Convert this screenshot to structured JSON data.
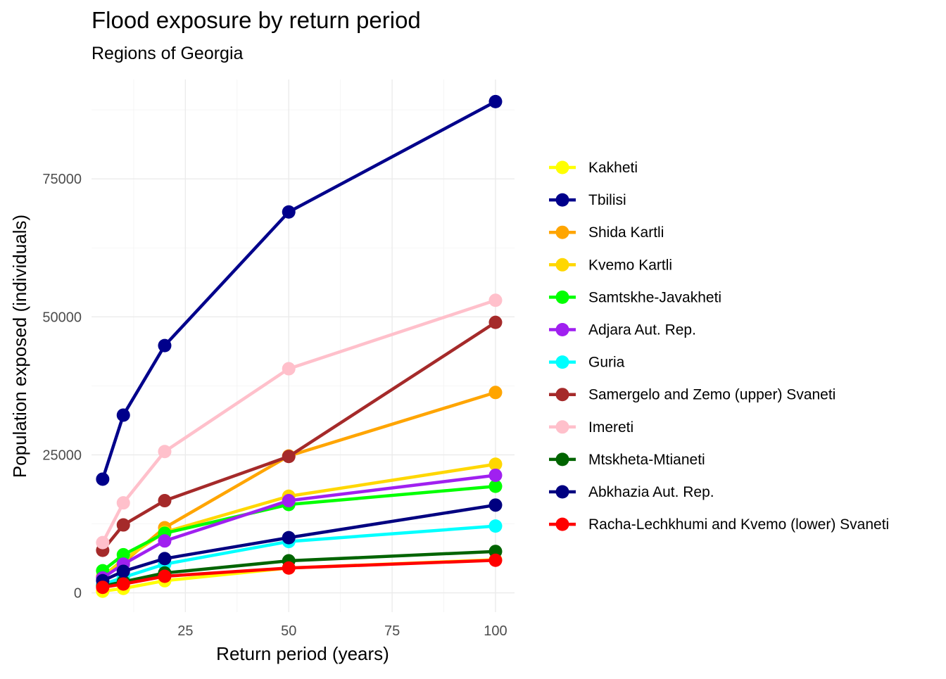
{
  "chart_data": {
    "type": "line",
    "title": "Flood exposure by return period",
    "subtitle": "Regions of Georgia",
    "xlabel": "Return period (years)",
    "ylabel": "Population exposed (individuals)",
    "x": [
      5,
      10,
      20,
      50,
      100
    ],
    "xlim": [
      2.3,
      104.6
    ],
    "ylim": [
      -3500,
      93000
    ],
    "x_ticks": [
      25,
      50,
      75,
      100
    ],
    "x_tick_labels": [
      "25",
      "50",
      "75",
      "100"
    ],
    "y_ticks": [
      0,
      25000,
      50000,
      75000
    ],
    "y_tick_labels": [
      "0",
      "25000",
      "50000",
      "75000"
    ],
    "grid": true,
    "legend_position": "right",
    "series": [
      {
        "name": "Kakheti",
        "color": "#FFFF00",
        "values": [
          300,
          800,
          2200,
          4500,
          6000
        ]
      },
      {
        "name": "Tbilisi",
        "color": "#00008B",
        "values": [
          20600,
          32200,
          44800,
          69000,
          89000
        ]
      },
      {
        "name": "Shida Kartli",
        "color": "#FFA500",
        "values": [
          2800,
          5500,
          11800,
          24800,
          36300
        ]
      },
      {
        "name": "Kvemo Kartli",
        "color": "#FFD700",
        "values": [
          3000,
          6000,
          11000,
          17500,
          23300
        ]
      },
      {
        "name": "Samtskhe-Javakheti",
        "color": "#00FF00",
        "values": [
          4000,
          6900,
          10800,
          16000,
          19300
        ]
      },
      {
        "name": "Adjara Aut. Rep.",
        "color": "#A020F0",
        "values": [
          2700,
          5200,
          9400,
          16700,
          21300
        ]
      },
      {
        "name": "Guria",
        "color": "#00FFFF",
        "values": [
          1500,
          2800,
          5200,
          9300,
          12100
        ]
      },
      {
        "name": "Samergelo and Zemo (upper) Svaneti",
        "color": "#A52A2A",
        "values": [
          7700,
          12300,
          16700,
          24700,
          49000
        ]
      },
      {
        "name": "Imereti",
        "color": "#FFC0CB",
        "values": [
          9100,
          16300,
          25600,
          40600,
          53000
        ]
      },
      {
        "name": "Mtskheta-Mtianeti",
        "color": "#006400",
        "values": [
          1200,
          2000,
          3600,
          5800,
          7500
        ]
      },
      {
        "name": "Abkhazia Aut. Rep.",
        "color": "#000080",
        "values": [
          2200,
          3900,
          6200,
          10000,
          15900
        ]
      },
      {
        "name": "Racha-Lechkhumi and Kvemo (lower) Svaneti",
        "color": "#FF0000",
        "values": [
          1000,
          1600,
          3000,
          4500,
          5900
        ]
      }
    ]
  }
}
